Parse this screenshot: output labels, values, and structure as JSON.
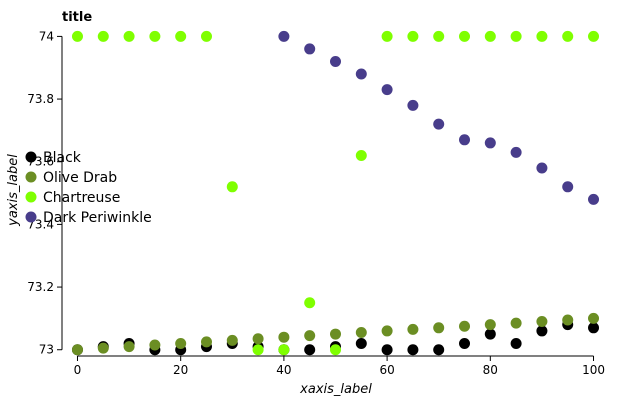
{
  "chart_data": {
    "type": "line",
    "title": "title",
    "xlabel": "xaxis_label",
    "ylabel": "yaxis_label",
    "xlim": [
      -3,
      103
    ],
    "ylim": [
      72.98,
      74.03
    ],
    "x_ticks": [
      0,
      20,
      40,
      60,
      80,
      100
    ],
    "y_ticks": [
      73.0,
      73.2,
      73.4,
      73.6,
      73.8,
      74.0
    ],
    "x_tick_labels": [
      "0",
      "20",
      "40",
      "60",
      "80",
      "100"
    ],
    "y_tick_labels": [
      "73",
      "73.2",
      "73.4",
      "73.6",
      "73.8",
      "74"
    ],
    "grid": false,
    "legend_position": "bottom-left",
    "marker": "point",
    "series": [
      {
        "name": "Black",
        "color": "#000000",
        "x": [
          0,
          5,
          10,
          15,
          20,
          25,
          30,
          35,
          40,
          45,
          50,
          55,
          60,
          65,
          70,
          75,
          80,
          85,
          90,
          95,
          100
        ],
        "y": [
          73.0,
          73.01,
          73.02,
          73.0,
          73.0,
          73.01,
          73.02,
          73.01,
          73.0,
          73.0,
          73.01,
          73.02,
          73.0,
          73.0,
          73.0,
          73.02,
          73.05,
          73.02,
          73.06,
          73.08,
          73.07
        ]
      },
      {
        "name": "Olive Drab",
        "color": "#6b8e23",
        "x": [
          0,
          5,
          10,
          15,
          20,
          25,
          30,
          35,
          40,
          45,
          50,
          55,
          60,
          65,
          70,
          75,
          80,
          85,
          90,
          95,
          100
        ],
        "y": [
          73.0,
          73.005,
          73.01,
          73.015,
          73.02,
          73.025,
          73.03,
          73.035,
          73.04,
          73.045,
          73.05,
          73.055,
          73.06,
          73.065,
          73.07,
          73.075,
          73.08,
          73.085,
          73.09,
          73.095,
          73.1
        ]
      },
      {
        "name": "Chartreuse",
        "color": "#7fff00",
        "x": [
          0,
          5,
          10,
          15,
          20,
          25,
          30,
          35,
          40,
          45,
          50,
          55,
          60,
          65,
          70,
          75,
          80,
          85,
          90,
          95,
          100
        ],
        "y": [
          74.0,
          74.0,
          74.0,
          74.0,
          74.0,
          74.0,
          73.52,
          73.0,
          73.0,
          73.15,
          73.0,
          73.62,
          74.0,
          74.0,
          74.0,
          74.0,
          74.0,
          74.0,
          74.0,
          74.0,
          74.0
        ]
      },
      {
        "name": "Dark Periwinkle",
        "color": "#483d8b",
        "x": [
          40,
          45,
          50,
          55,
          60,
          65,
          70,
          75,
          80,
          85,
          90,
          95,
          100
        ],
        "y": [
          74.0,
          73.96,
          73.92,
          73.88,
          73.83,
          73.78,
          73.72,
          73.67,
          73.66,
          73.63,
          73.58,
          73.52,
          73.48
        ]
      }
    ]
  }
}
